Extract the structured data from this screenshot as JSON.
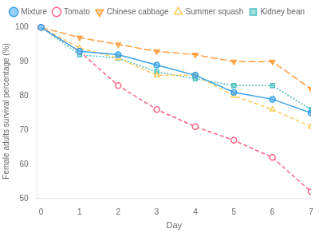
{
  "chart_data": {
    "type": "line",
    "xlabel": "Day",
    "ylabel": "Female adults survival percentage (%)",
    "x": [
      0,
      1,
      2,
      3,
      4,
      5,
      6,
      7
    ],
    "series": [
      {
        "name": "Mixture",
        "values": [
          100,
          93,
          92,
          89,
          86,
          81,
          79,
          75
        ],
        "marker": "filled_circle",
        "line_style": "solid"
      },
      {
        "name": "Tomato",
        "values": [
          100,
          93,
          83,
          76,
          71,
          67,
          62,
          52
        ],
        "marker": "open_circle",
        "line_style": "dashed"
      },
      {
        "name": "Chinese cabbage",
        "values": [
          100,
          97,
          95,
          93,
          92,
          90,
          90,
          82
        ],
        "marker": "filled_triangle_down",
        "line_style": "long_dashed"
      },
      {
        "name": "Summer squash",
        "values": [
          100,
          94,
          91,
          86,
          86,
          80,
          76,
          71
        ],
        "marker": "open_triangle_up",
        "line_style": "dashed"
      },
      {
        "name": "Kidney bean",
        "values": [
          100,
          92,
          91,
          87,
          85,
          83,
          83,
          76
        ],
        "marker": "filled_square",
        "line_style": "dotted"
      }
    ],
    "xlim": [
      -0.1,
      7
    ],
    "ylim": [
      50,
      101
    ],
    "xticks": [
      0,
      1,
      2,
      3,
      4,
      5,
      6,
      7
    ],
    "yticks": [
      50,
      60,
      70,
      80,
      90,
      100
    ],
    "grid": false,
    "legend": "upper right"
  }
}
